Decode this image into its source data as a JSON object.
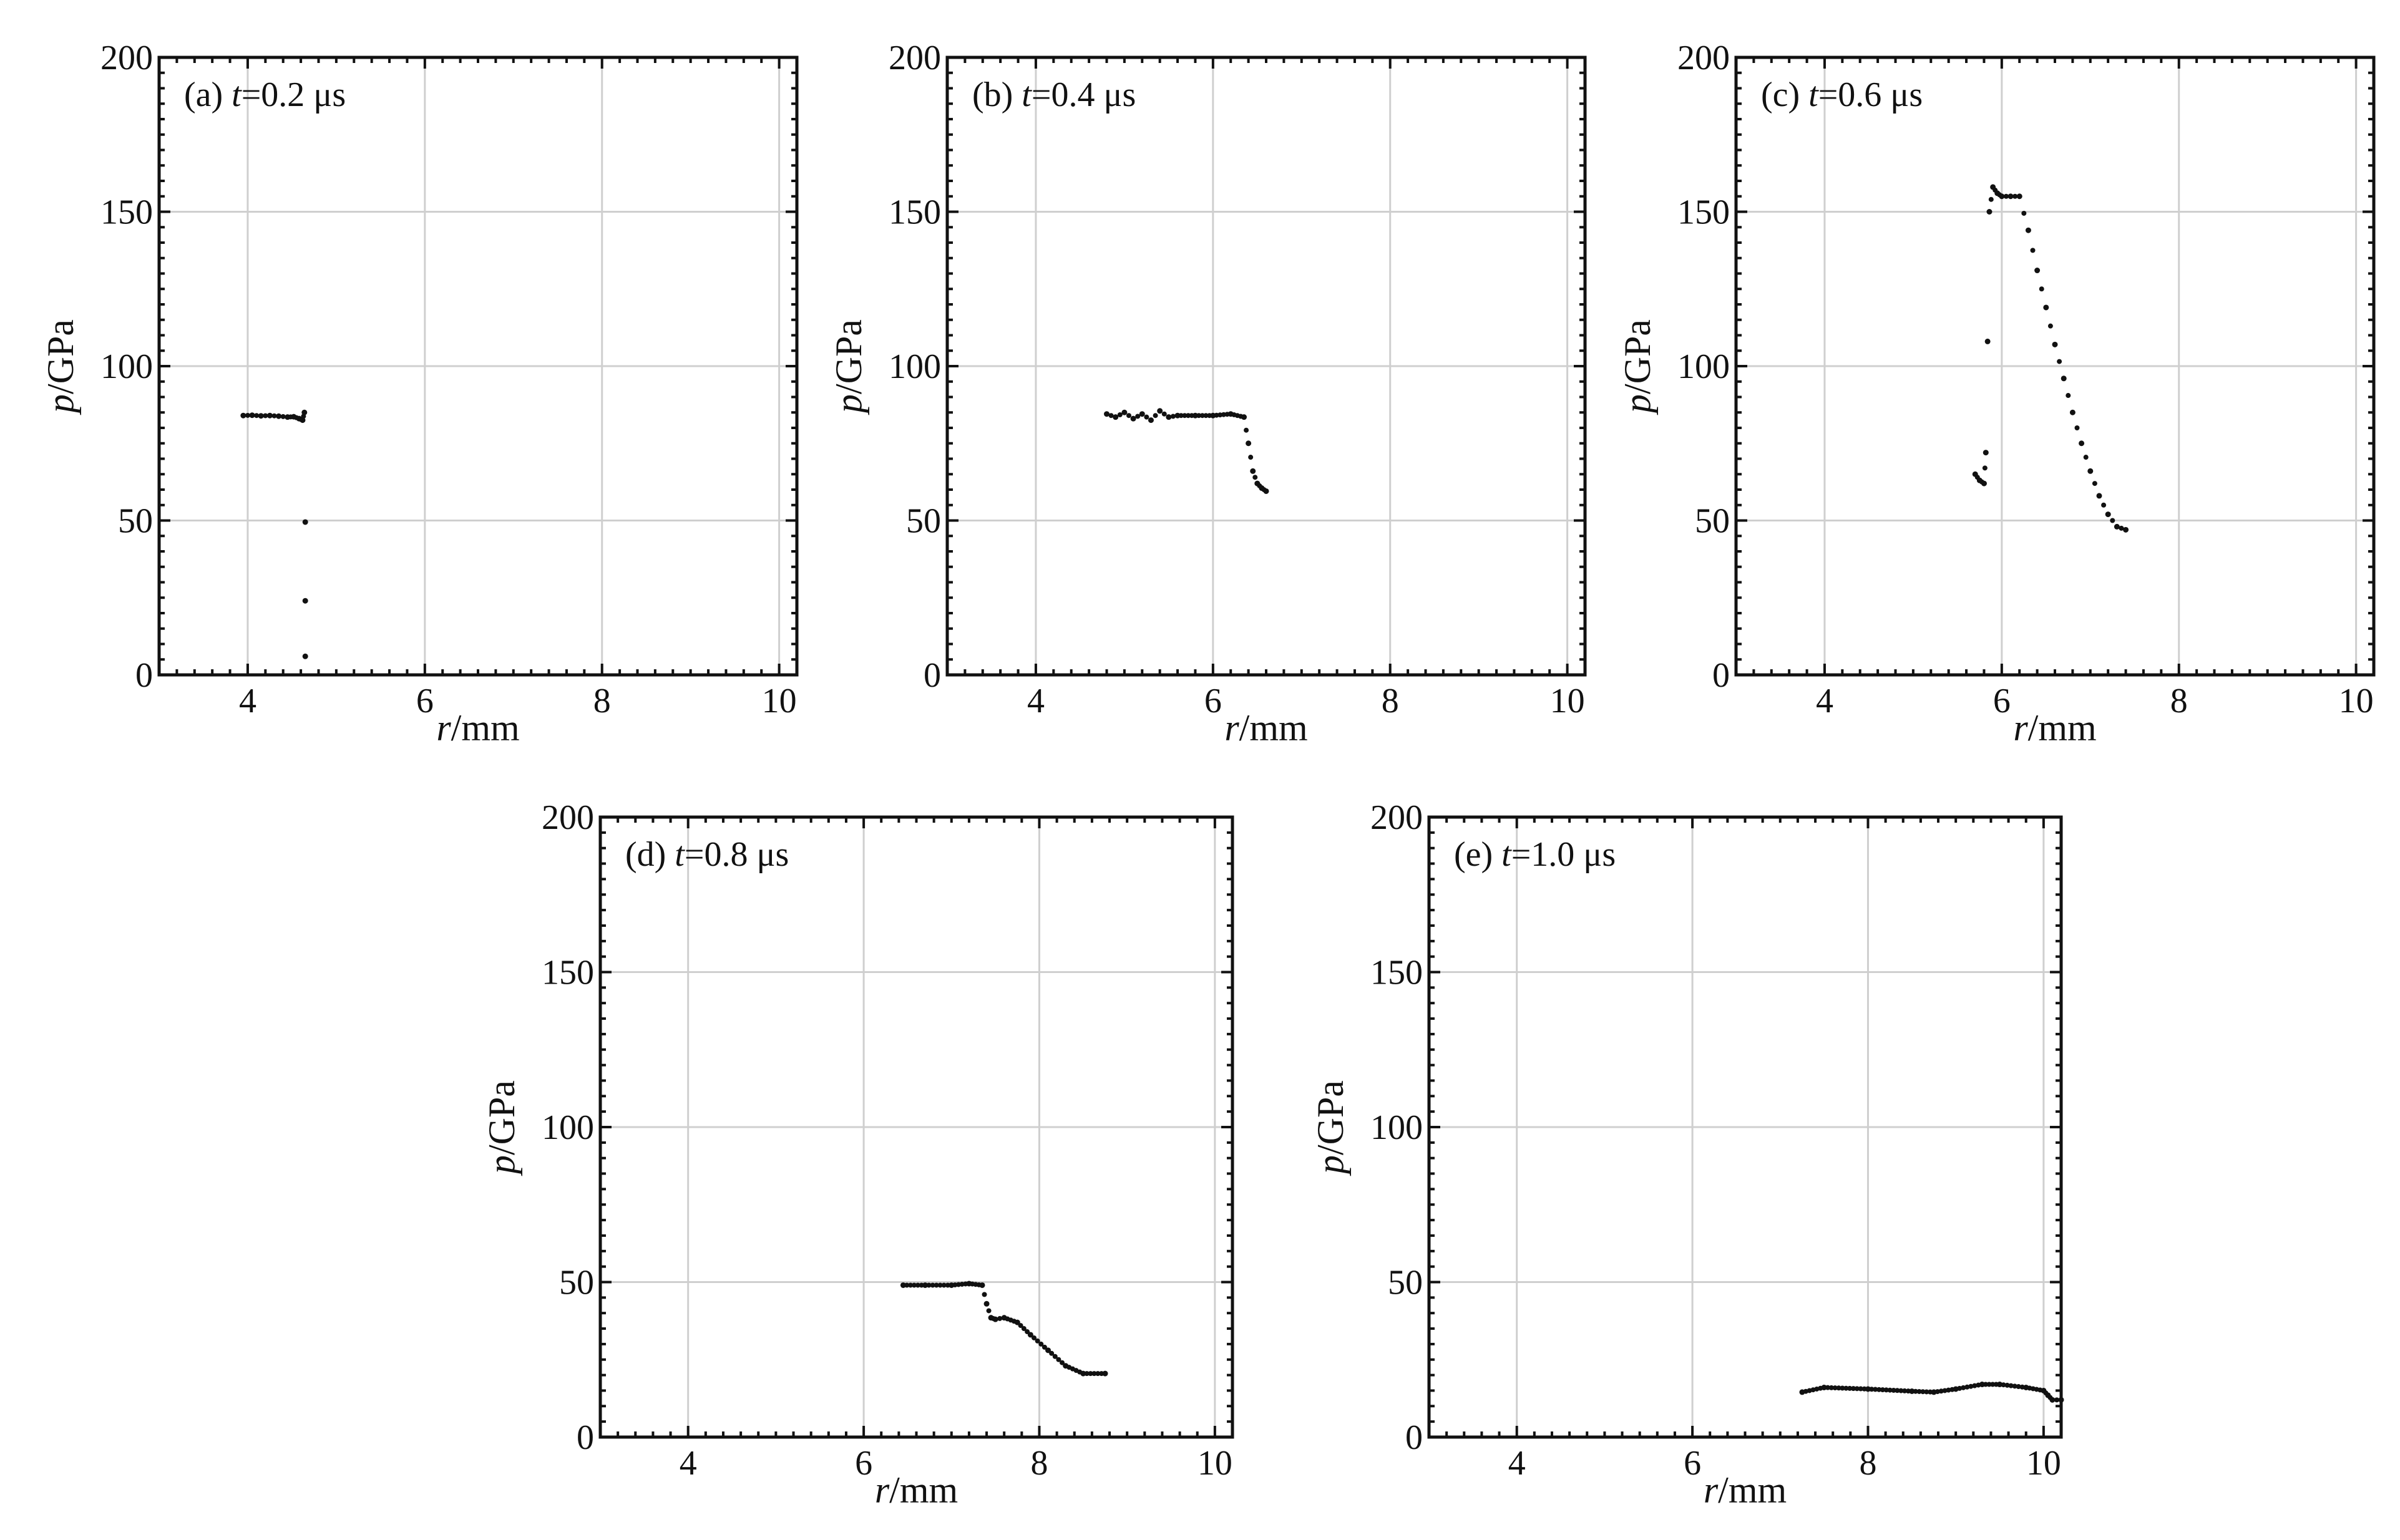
{
  "figure": {
    "panels": [
      {
        "id": "a",
        "prefix": "(a) ",
        "var": "t",
        "rest": "=0.2 μs"
      },
      {
        "id": "b",
        "prefix": "(b) ",
        "var": "t",
        "rest": "=0.4 μs"
      },
      {
        "id": "c",
        "prefix": "(c) ",
        "var": "t",
        "rest": "=0.6 μs"
      },
      {
        "id": "d",
        "prefix": "(d) ",
        "var": "t",
        "rest": "=0.8 μs"
      },
      {
        "id": "e",
        "prefix": "(e) ",
        "var": "t",
        "rest": "=1.0 μs"
      }
    ],
    "xlabel": {
      "var": "r",
      "unit": "/mm"
    },
    "ylabel": {
      "var": "p",
      "unit": "/GPa"
    }
  },
  "chart_data": [
    {
      "type": "scatter",
      "title": "(a) t=0.2 μs",
      "xlabel": "r/mm",
      "ylabel": "p/GPa",
      "xlim": [
        3.0,
        10.2
      ],
      "ylim": [
        0,
        200
      ],
      "xticks": [
        4,
        6,
        8,
        10
      ],
      "yticks": [
        0,
        50,
        100,
        150,
        200
      ],
      "grid": true,
      "series": [
        {
          "x": [
            3.95,
            4.05,
            4.15,
            4.25,
            4.35,
            4.45,
            4.52,
            4.58,
            4.62,
            4.64,
            4.65,
            4.65,
            4.65
          ],
          "y": [
            84.0,
            84.1,
            83.9,
            84.0,
            83.8,
            83.5,
            83.6,
            83.0,
            82.5,
            85.0,
            49.5,
            24.0,
            6.0
          ]
        }
      ]
    },
    {
      "type": "scatter",
      "title": "(b) t=0.4 μs",
      "xlabel": "r/mm",
      "ylabel": "p/GPa",
      "xlim": [
        3.0,
        10.2
      ],
      "ylim": [
        0,
        200
      ],
      "xticks": [
        4,
        6,
        8,
        10
      ],
      "yticks": [
        0,
        50,
        100,
        150,
        200
      ],
      "grid": true,
      "series": [
        {
          "x": [
            4.8,
            4.9,
            5.0,
            5.1,
            5.2,
            5.3,
            5.4,
            5.5,
            5.6,
            5.8,
            6.0,
            6.2,
            6.35,
            6.4,
            6.45,
            6.5,
            6.55,
            6.6
          ],
          "y": [
            84.5,
            83.5,
            85.0,
            83.0,
            84.5,
            82.5,
            85.5,
            83.5,
            84.0,
            84.0,
            84.0,
            84.5,
            83.5,
            75.0,
            66.0,
            62.0,
            60.5,
            59.5
          ]
        }
      ]
    },
    {
      "type": "scatter",
      "title": "(c) t=0.6 μs",
      "xlabel": "r/mm",
      "ylabel": "p/GPa",
      "xlim": [
        3.0,
        10.2
      ],
      "ylim": [
        0,
        200
      ],
      "xticks": [
        4,
        6,
        8,
        10
      ],
      "yticks": [
        0,
        50,
        100,
        150,
        200
      ],
      "grid": true,
      "series": [
        {
          "x": [
            5.7,
            5.75,
            5.8,
            5.82,
            5.84,
            5.86,
            5.9,
            5.95,
            6.0,
            6.1,
            6.2,
            6.3,
            6.4,
            6.5,
            6.6,
            6.7,
            6.8,
            6.9,
            7.0,
            7.1,
            7.2,
            7.3,
            7.4
          ],
          "y": [
            65.0,
            63.0,
            62.0,
            72.0,
            108.0,
            150.0,
            158.0,
            156.0,
            155.0,
            155.0,
            155.0,
            144.0,
            131.0,
            119.0,
            107.0,
            96.0,
            85.0,
            75.0,
            66.0,
            58.0,
            52.0,
            48.0,
            47.0
          ]
        }
      ]
    },
    {
      "type": "scatter",
      "title": "(d) t=0.8 μs",
      "xlabel": "r/mm",
      "ylabel": "p/GPa",
      "xlim": [
        3.0,
        10.2
      ],
      "ylim": [
        0,
        200
      ],
      "xticks": [
        4,
        6,
        8,
        10
      ],
      "yticks": [
        0,
        50,
        100,
        150,
        200
      ],
      "grid": true,
      "series": [
        {
          "x": [
            6.45,
            6.7,
            7.0,
            7.2,
            7.35,
            7.4,
            7.45,
            7.5,
            7.6,
            7.75,
            7.9,
            8.1,
            8.3,
            8.5,
            8.75
          ],
          "y": [
            49.0,
            49.0,
            49.0,
            49.5,
            49.0,
            43.0,
            38.5,
            38.0,
            38.5,
            37.0,
            33.0,
            28.0,
            23.0,
            20.5,
            20.5
          ]
        }
      ]
    },
    {
      "type": "scatter",
      "title": "(e) t=1.0 μs",
      "xlabel": "r/mm",
      "ylabel": "p/GPa",
      "xlim": [
        3.0,
        10.2
      ],
      "ylim": [
        0,
        200
      ],
      "xticks": [
        4,
        6,
        8,
        10
      ],
      "yticks": [
        0,
        50,
        100,
        150,
        200
      ],
      "grid": true,
      "series": [
        {
          "x": [
            7.25,
            7.5,
            8.0,
            8.5,
            8.75,
            9.0,
            9.3,
            9.5,
            9.8,
            10.0,
            10.05,
            10.1,
            10.2
          ],
          "y": [
            14.5,
            16.0,
            15.5,
            14.8,
            14.5,
            15.5,
            17.0,
            17.0,
            16.0,
            15.0,
            13.5,
            12.0,
            12.0
          ]
        }
      ]
    }
  ]
}
